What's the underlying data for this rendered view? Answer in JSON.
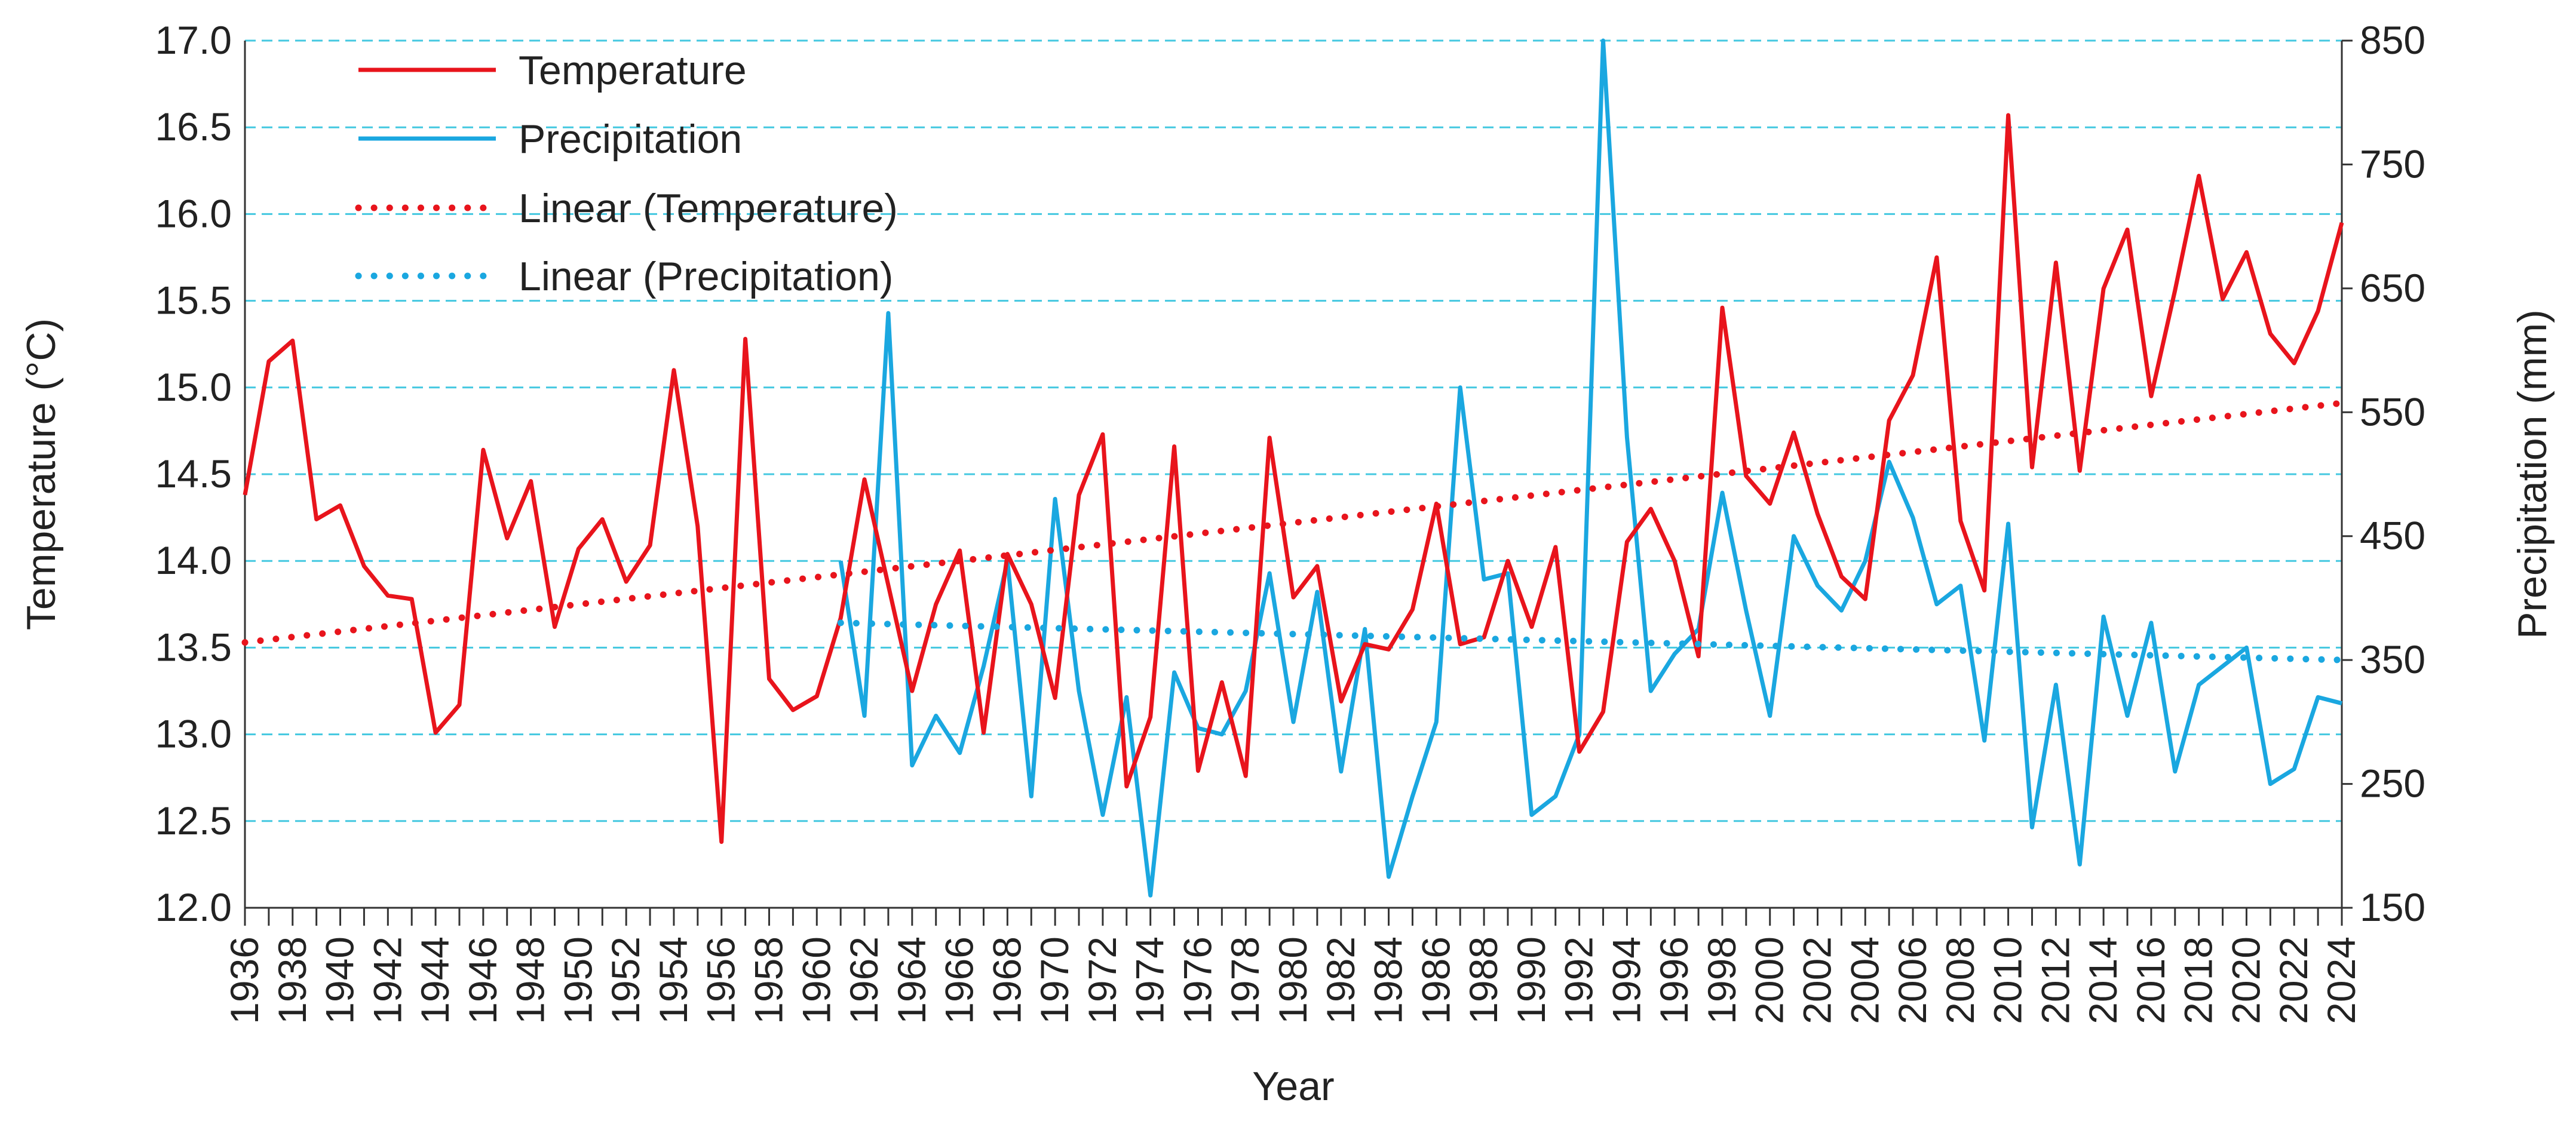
{
  "chart_data": {
    "type": "line",
    "title": "",
    "xlabel": "Year",
    "ylabel": "Temperature (°C)",
    "y2label": "Precipitation (mm)",
    "xlim": [
      1936,
      2024
    ],
    "ylim": [
      12.0,
      17.0
    ],
    "y2lim": [
      150,
      850
    ],
    "grid": true,
    "legend_position": "top-left",
    "x_tick_labels": [
      "1936",
      "1938",
      "1940",
      "1942",
      "1944",
      "1946",
      "1948",
      "1950",
      "1952",
      "1954",
      "1956",
      "1958",
      "1960",
      "1962",
      "1964",
      "1966",
      "1968",
      "1970",
      "1972",
      "1974",
      "1976",
      "1978",
      "1980",
      "1982",
      "1984",
      "1986",
      "1988",
      "1990",
      "1992",
      "1994",
      "1996",
      "1998",
      "2000",
      "2002",
      "2004",
      "2006",
      "2008",
      "2010",
      "2012",
      "2014",
      "2016",
      "2018",
      "2020",
      "2022",
      "2024"
    ],
    "y_tick_labels": [
      "12.0",
      "12.5",
      "13.0",
      "13.5",
      "14.0",
      "14.5",
      "15.0",
      "15.5",
      "16.0",
      "16.5",
      "17.0"
    ],
    "y2_tick_labels": [
      "150",
      "250",
      "350",
      "450",
      "550",
      "650",
      "750",
      "850"
    ],
    "colors": {
      "temperature": "#e8141c",
      "precipitation": "#1aa7e0",
      "grid": "#44c8e0",
      "axis": "#333333"
    },
    "series": [
      {
        "name": "Temperature",
        "axis": "left",
        "style": "solid",
        "x_start": 1936,
        "values": [
          14.38,
          15.15,
          15.27,
          14.24,
          14.32,
          13.97,
          13.8,
          13.78,
          13.01,
          13.17,
          14.64,
          14.13,
          14.46,
          13.62,
          14.07,
          14.24,
          13.88,
          14.09,
          15.1,
          14.2,
          12.38,
          15.28,
          13.32,
          13.14,
          13.22,
          13.67,
          14.47,
          13.86,
          13.25,
          13.75,
          14.06,
          13.01,
          14.04,
          13.75,
          13.21,
          14.38,
          14.73,
          12.7,
          13.1,
          14.66,
          12.79,
          13.3,
          12.76,
          14.71,
          13.79,
          13.97,
          13.19,
          13.52,
          13.49,
          13.72,
          14.33,
          13.52,
          13.56,
          14.0,
          13.62,
          14.08,
          12.9,
          13.13,
          14.11,
          14.3,
          14.0,
          13.45,
          15.46,
          14.49,
          14.33,
          14.74,
          14.27,
          13.91,
          13.78,
          14.81,
          15.07,
          15.75,
          14.23,
          13.83,
          16.57,
          14.54,
          15.72,
          14.52,
          15.57,
          15.91,
          14.95,
          15.56,
          16.22,
          15.51,
          15.78,
          15.31,
          15.14,
          15.44,
          15.95
        ]
      },
      {
        "name": "Precipitation",
        "axis": "right",
        "style": "solid",
        "x_start": 1961,
        "values": [
          430,
          305,
          630,
          265,
          305,
          275,
          345,
          430,
          240,
          480,
          325,
          225,
          320,
          160,
          340,
          295,
          290,
          325,
          420,
          300,
          405,
          260,
          375,
          175,
          240,
          300,
          570,
          415,
          420,
          225,
          240,
          290,
          850,
          530,
          325,
          355,
          375,
          485,
          390,
          305,
          450,
          410,
          390,
          430,
          510,
          465,
          395,
          410,
          285,
          460,
          215,
          330,
          185,
          385,
          305,
          380,
          260,
          330,
          345,
          360,
          250,
          262,
          320,
          315
        ]
      },
      {
        "name": "Linear (Temperature)",
        "axis": "left",
        "style": "dotted",
        "trend_of": "Temperature",
        "x": [
          1936,
          2024
        ],
        "values": [
          13.53,
          14.91
        ]
      },
      {
        "name": "Linear (Precipitation)",
        "axis": "right",
        "style": "dotted",
        "trend_of": "Precipitation",
        "x": [
          1961,
          2024
        ],
        "values": [
          380,
          350
        ]
      }
    ]
  }
}
